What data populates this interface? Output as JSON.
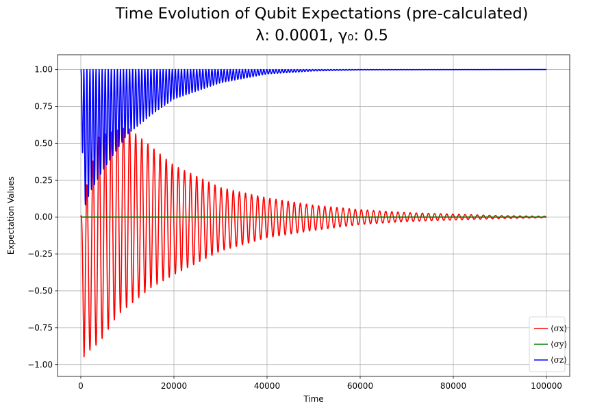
{
  "chart_data": {
    "type": "line",
    "title": "Time Evolution of Qubit Expectations (pre-calculated)",
    "subtitle": "λ: 0.0001, γ₀: 0.5",
    "xlabel": "Time",
    "ylabel": "Expectation Values",
    "xlim": [
      -5000,
      105000
    ],
    "ylim": [
      -1.08,
      1.1
    ],
    "xticks": [
      0,
      20000,
      40000,
      60000,
      80000,
      100000
    ],
    "xtick_labels": [
      "0",
      "20000",
      "40000",
      "60000",
      "80000",
      "100000"
    ],
    "yticks": [
      -1.0,
      -0.75,
      -0.5,
      -0.25,
      0.0,
      0.25,
      0.5,
      0.75,
      1.0
    ],
    "ytick_labels": [
      "−1.00",
      "−0.75",
      "−0.50",
      "−0.25",
      "0.00",
      "0.25",
      "0.50",
      "0.75",
      "1.00"
    ],
    "grid": true,
    "legend_position": "lower-right",
    "series": [
      {
        "name": "⟨σx⟩",
        "color": "#ff0000",
        "envelope_upper": [
          [
            0,
            0.0
          ],
          [
            1000,
            0.18
          ],
          [
            4000,
            0.55
          ],
          [
            10000,
            0.61
          ],
          [
            20000,
            0.35
          ],
          [
            30000,
            0.2
          ],
          [
            40000,
            0.13
          ],
          [
            50000,
            0.08
          ],
          [
            60000,
            0.05
          ],
          [
            70000,
            0.03
          ],
          [
            80000,
            0.02
          ],
          [
            90000,
            0.01
          ],
          [
            100000,
            0.005
          ]
        ],
        "envelope_lower": [
          [
            0,
            0.0
          ],
          [
            700,
            -0.96
          ],
          [
            2000,
            -0.9
          ],
          [
            4000,
            -0.85
          ],
          [
            8000,
            -0.66
          ],
          [
            15000,
            -0.48
          ],
          [
            20000,
            -0.39
          ],
          [
            30000,
            -0.23
          ],
          [
            40000,
            -0.14
          ],
          [
            50000,
            -0.09
          ],
          [
            60000,
            -0.05
          ],
          [
            70000,
            -0.03
          ],
          [
            80000,
            -0.02
          ],
          [
            90000,
            -0.01
          ],
          [
            100000,
            -0.005
          ]
        ],
        "oscillation_period": 1310
      },
      {
        "name": "⟨σy⟩",
        "color": "#008000",
        "values": [
          [
            0,
            0.0
          ],
          [
            100000,
            0.0
          ]
        ]
      },
      {
        "name": "⟨σz⟩",
        "color": "#0000ff",
        "envelope_upper": [
          [
            0,
            1.0
          ],
          [
            100000,
            1.0
          ]
        ],
        "envelope_lower": [
          [
            0,
            1.0
          ],
          [
            600,
            0.05
          ],
          [
            2000,
            0.17
          ],
          [
            5000,
            0.33
          ],
          [
            10000,
            0.56
          ],
          [
            15000,
            0.69
          ],
          [
            20000,
            0.8
          ],
          [
            30000,
            0.91
          ],
          [
            40000,
            0.97
          ],
          [
            50000,
            0.99
          ],
          [
            60000,
            0.997
          ],
          [
            100000,
            1.0
          ]
        ],
        "oscillation_period": 655
      }
    ]
  }
}
